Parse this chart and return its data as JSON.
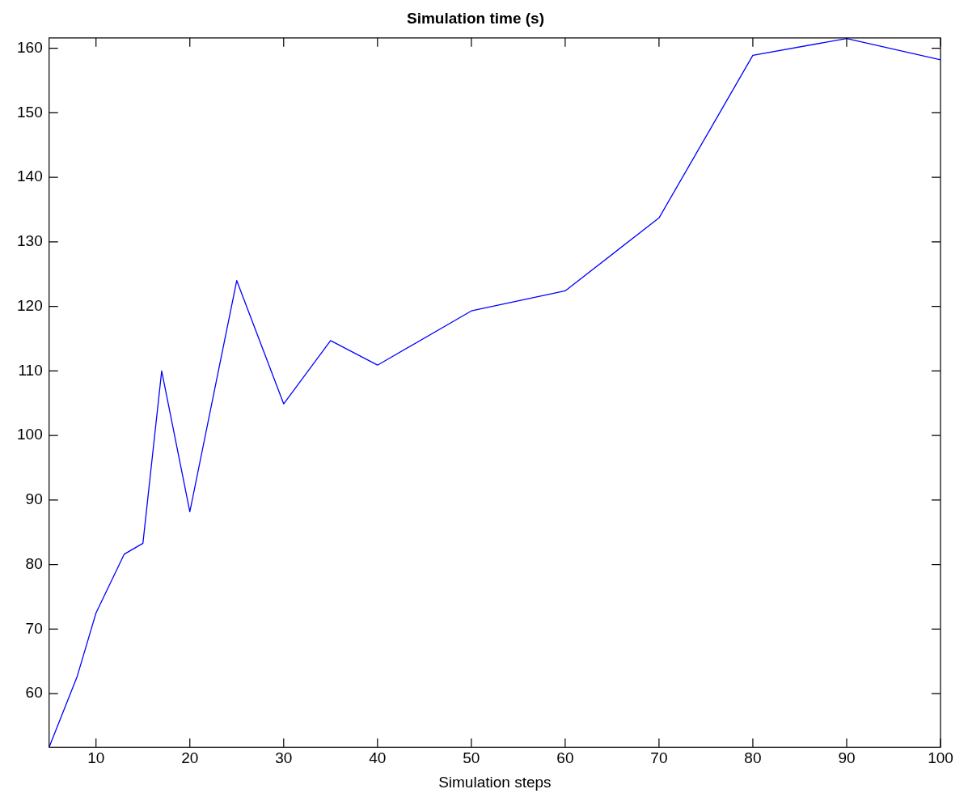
{
  "chart_data": {
    "type": "line",
    "title": "Simulation time (s)",
    "xlabel": "Simulation steps",
    "x": [
      5,
      8,
      10,
      13,
      15,
      17,
      20,
      25,
      30,
      35,
      40,
      50,
      60,
      70,
      80,
      90,
      100
    ],
    "series": [
      {
        "color": "#0000ff",
        "values": [
          51.7,
          62.7,
          72.5,
          81.6,
          83.3,
          110,
          88.2,
          124,
          104.9,
          114.7,
          110.9,
          119.3,
          122.4,
          133.7,
          158.9,
          161.5,
          158.2
        ]
      }
    ],
    "xlim": [
      5,
      100
    ],
    "xticks": [
      10,
      20,
      30,
      40,
      50,
      60,
      70,
      80,
      90,
      100
    ],
    "ylim": [
      51.7,
      161.6
    ],
    "yticks": [
      60,
      70,
      80,
      90,
      100,
      110,
      120,
      130,
      140,
      150,
      160
    ],
    "grid": false,
    "legend": false,
    "marker": "none",
    "line_style": "solid"
  }
}
